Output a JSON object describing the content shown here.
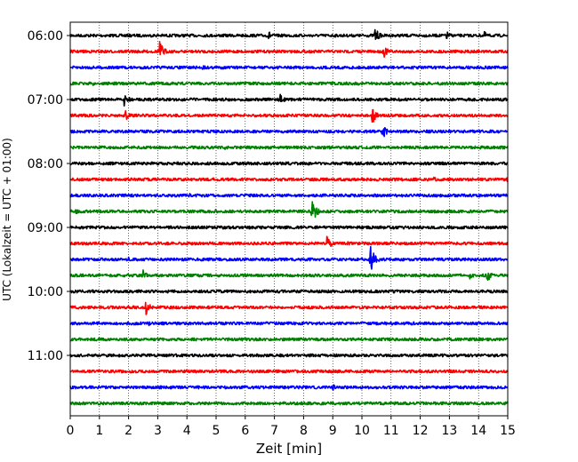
{
  "chart_data": {
    "type": "line",
    "title": "",
    "xlabel": "Zeit  [min]",
    "ylabel": "UTC (Lokalzeit = UTC + 01:00)",
    "xlim": [
      0,
      15
    ],
    "x_ticks": [
      0,
      1,
      2,
      3,
      4,
      5,
      6,
      7,
      8,
      9,
      10,
      11,
      12,
      13,
      14,
      15
    ],
    "grid": "vertical dotted",
    "legend": "none",
    "colors": [
      "#000000",
      "#ff0000",
      "#0000ff",
      "#008000"
    ],
    "y_tick_labels": [
      "06:00",
      "07:00",
      "08:00",
      "09:00",
      "10:00",
      "11:00"
    ],
    "traces": [
      {
        "start": "06:00",
        "color": "#000000",
        "events": [
          {
            "t": 6.8,
            "amp": 0.3
          },
          {
            "t": 10.45,
            "amp": 0.5
          },
          {
            "t": 12.9,
            "amp": 0.3
          },
          {
            "t": 14.2,
            "amp": 0.25
          }
        ]
      },
      {
        "start": "06:15",
        "color": "#ff0000",
        "events": [
          {
            "t": 3.05,
            "amp": 0.75
          },
          {
            "t": 10.75,
            "amp": 0.4
          }
        ]
      },
      {
        "start": "06:30",
        "color": "#0000ff",
        "events": [
          {
            "t": 4.55,
            "amp": 0.2
          }
        ]
      },
      {
        "start": "06:45",
        "color": "#008000",
        "events": [
          {
            "t": 0.8,
            "amp": 0.2
          }
        ]
      },
      {
        "start": "07:00",
        "color": "#000000",
        "events": [
          {
            "t": 1.85,
            "amp": 0.45
          },
          {
            "t": 7.15,
            "amp": 0.45
          }
        ]
      },
      {
        "start": "07:15",
        "color": "#ff0000",
        "events": [
          {
            "t": 1.9,
            "amp": 0.3
          },
          {
            "t": 10.35,
            "amp": 0.6
          }
        ]
      },
      {
        "start": "07:30",
        "color": "#0000ff",
        "events": [
          {
            "t": 10.7,
            "amp": 0.5
          }
        ]
      },
      {
        "start": "07:45",
        "color": "#008000",
        "events": [
          {
            "t": 5.3,
            "amp": 0.15
          }
        ]
      },
      {
        "start": "08:00",
        "color": "#000000",
        "events": [
          {
            "t": 6.0,
            "amp": 0.1
          }
        ]
      },
      {
        "start": "08:15",
        "color": "#ff0000",
        "events": [
          {
            "t": 4.9,
            "amp": 0.2
          },
          {
            "t": 12.45,
            "amp": 0.2
          },
          {
            "t": 14.9,
            "amp": 0.25
          }
        ]
      },
      {
        "start": "08:30",
        "color": "#0000ff",
        "events": [
          {
            "t": 4.1,
            "amp": 0.15
          }
        ]
      },
      {
        "start": "08:45",
        "color": "#008000",
        "events": [
          {
            "t": 0.2,
            "amp": 0.2
          },
          {
            "t": 8.3,
            "amp": 0.85
          },
          {
            "t": 5.0,
            "amp": 0.2
          }
        ]
      },
      {
        "start": "09:00",
        "color": "#000000",
        "events": [
          {
            "t": 4.5,
            "amp": 0.1
          }
        ]
      },
      {
        "start": "09:15",
        "color": "#ff0000",
        "events": [
          {
            "t": 8.8,
            "amp": 0.5
          },
          {
            "t": 9.5,
            "amp": 0.2
          }
        ]
      },
      {
        "start": "09:30",
        "color": "#0000ff",
        "events": [
          {
            "t": 10.3,
            "amp": 0.85
          },
          {
            "t": 2.0,
            "amp": 0.15
          }
        ]
      },
      {
        "start": "09:45",
        "color": "#008000",
        "events": [
          {
            "t": 2.5,
            "amp": 0.35
          },
          {
            "t": 13.7,
            "amp": 0.3
          },
          {
            "t": 14.3,
            "amp": 0.4
          }
        ]
      },
      {
        "start": "10:00",
        "color": "#000000",
        "events": [
          {
            "t": 4.0,
            "amp": 0.1
          }
        ]
      },
      {
        "start": "10:15",
        "color": "#ff0000",
        "events": [
          {
            "t": 2.6,
            "amp": 0.5
          },
          {
            "t": 3.0,
            "amp": 0.2
          }
        ]
      },
      {
        "start": "10:30",
        "color": "#0000ff",
        "events": [
          {
            "t": 2.7,
            "amp": 0.15
          }
        ]
      },
      {
        "start": "10:45",
        "color": "#008000",
        "events": []
      },
      {
        "start": "11:00",
        "color": "#000000",
        "events": [
          {
            "t": 8.0,
            "amp": 0.1
          }
        ]
      },
      {
        "start": "11:15",
        "color": "#ff0000",
        "events": []
      },
      {
        "start": "11:30",
        "color": "#0000ff",
        "events": [
          {
            "t": 4.4,
            "amp": 0.2
          },
          {
            "t": 9.0,
            "amp": 0.2
          }
        ]
      },
      {
        "start": "11:45",
        "color": "#008000",
        "events": []
      }
    ]
  }
}
